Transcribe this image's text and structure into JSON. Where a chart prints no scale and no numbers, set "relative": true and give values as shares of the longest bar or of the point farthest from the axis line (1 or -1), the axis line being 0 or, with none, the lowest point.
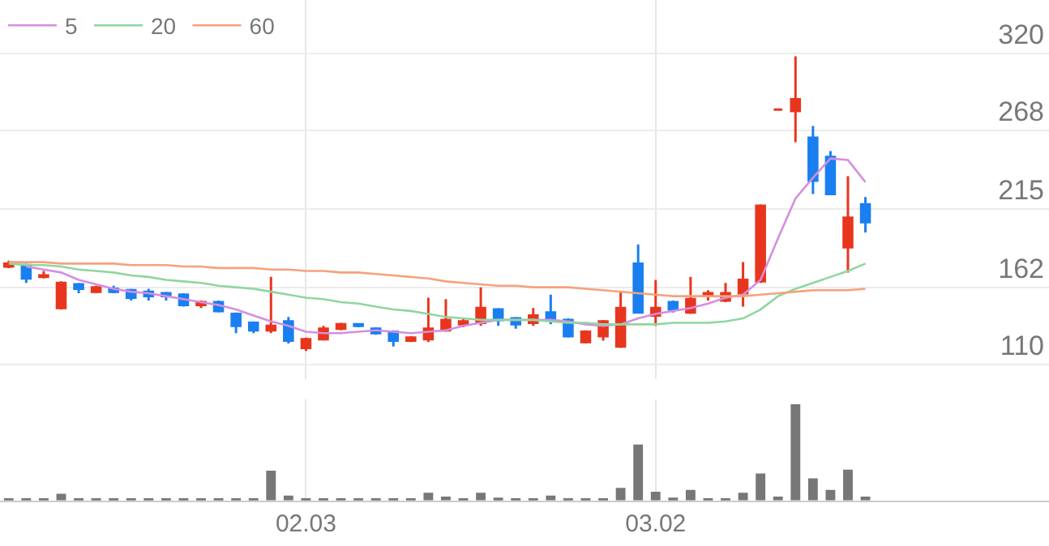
{
  "chart_data": [
    {
      "type": "candlestick",
      "categories": [
        null,
        null,
        null,
        null,
        null,
        null,
        null,
        null,
        null,
        null,
        null,
        null,
        null,
        null,
        null,
        null,
        null,
        "02.03",
        null,
        null,
        null,
        null,
        null,
        null,
        null,
        null,
        null,
        null,
        null,
        null,
        null,
        null,
        null,
        null,
        null,
        null,
        null,
        "03.02",
        null,
        null,
        null,
        null,
        null,
        null,
        null,
        null,
        null,
        null,
        null,
        null
      ],
      "ohlc": [
        [
          176,
          180,
          175,
          178
        ],
        [
          177,
          178,
          165,
          168
        ],
        [
          169,
          173,
          168,
          170
        ],
        [
          148,
          166,
          147,
          165
        ],
        [
          164,
          165,
          158,
          161
        ],
        [
          159,
          163,
          158,
          162
        ],
        [
          161,
          163,
          158,
          159
        ],
        [
          160,
          161,
          153,
          155
        ],
        [
          159,
          161,
          153,
          156
        ],
        [
          158,
          159,
          153,
          156
        ],
        [
          157,
          158,
          149,
          150
        ],
        [
          150,
          153,
          148,
          152
        ],
        [
          152,
          153,
          145,
          146
        ],
        [
          144,
          145,
          131,
          136
        ],
        [
          138,
          139,
          131,
          133
        ],
        [
          133,
          169,
          131,
          136
        ],
        [
          139,
          142,
          124,
          126
        ],
        [
          121,
          128,
          119,
          127
        ],
        [
          127,
          136,
          126,
          134
        ],
        [
          134,
          138,
          133,
          137
        ],
        [
          137,
          137,
          135,
          136
        ],
        [
          134,
          135,
          130,
          131
        ],
        [
          132,
          133,
          122,
          126
        ],
        [
          126,
          129,
          125,
          128
        ],
        [
          127,
          155,
          125,
          134
        ],
        [
          133,
          154,
          132,
          140
        ],
        [
          137,
          141,
          135,
          139
        ],
        [
          138,
          162,
          136,
          148
        ],
        [
          147,
          148,
          136,
          140
        ],
        [
          141,
          142,
          134,
          137
        ],
        [
          138,
          148,
          136,
          143
        ],
        [
          145,
          157,
          137,
          141
        ],
        [
          140,
          141,
          128,
          129
        ],
        [
          125,
          133,
          124,
          132
        ],
        [
          129,
          140,
          126,
          139
        ],
        [
          122,
          159,
          121,
          148
        ],
        [
          178,
          191,
          145,
          145
        ],
        [
          143,
          167,
          136,
          148
        ],
        [
          152,
          153,
          145,
          147
        ],
        [
          145,
          169,
          144,
          154
        ],
        [
          156,
          160,
          153,
          158
        ],
        [
          153,
          165,
          152,
          158
        ],
        [
          158,
          179,
          149,
          167
        ],
        [
          166,
          218,
          165,
          217
        ],
        [
          282,
          282,
          282,
          282
        ],
        [
          281,
          318,
          260,
          289
        ],
        [
          263,
          271,
          225,
          234
        ],
        [
          250,
          254,
          225,
          225
        ],
        [
          189,
          237,
          172,
          209
        ],
        [
          218,
          223,
          199,
          206
        ]
      ],
      "colors": [
        "#e8361e",
        "#1a7ff0",
        "#e8361e",
        "#e8361e",
        "#1a7ff0",
        "#e8361e",
        "#1a7ff0",
        "#1a7ff0",
        "#1a7ff0",
        "#1a7ff0",
        "#1a7ff0",
        "#e8361e",
        "#1a7ff0",
        "#1a7ff0",
        "#1a7ff0",
        "#e8361e",
        "#1a7ff0",
        "#e8361e",
        "#e8361e",
        "#e8361e",
        "#1a7ff0",
        "#1a7ff0",
        "#1a7ff0",
        "#e8361e",
        "#e8361e",
        "#e8361e",
        "#e8361e",
        "#e8361e",
        "#1a7ff0",
        "#1a7ff0",
        "#e8361e",
        "#1a7ff0",
        "#1a7ff0",
        "#e8361e",
        "#e8361e",
        "#e8361e",
        "#1a7ff0",
        "#e8361e",
        "#1a7ff0",
        "#e8361e",
        "#e8361e",
        "#e8361e",
        "#e8361e",
        "#e8361e",
        "#e8361e",
        "#e8361e",
        "#1a7ff0",
        "#1a7ff0",
        "#e8361e",
        "#1a7ff0"
      ],
      "series": [
        {
          "name": "5",
          "type": "line",
          "color": "#d58ee0",
          "values": [
            null,
            176,
            174,
            172,
            167,
            164,
            161,
            159,
            158,
            156,
            154,
            152,
            150,
            147,
            143,
            139,
            136,
            132,
            131,
            131,
            132,
            133,
            132,
            131,
            132,
            133,
            136,
            138,
            140,
            140,
            140,
            140,
            139,
            137,
            136,
            137,
            141,
            144,
            146,
            148,
            151,
            155,
            157,
            167,
            195,
            222,
            236,
            249,
            248,
            233
          ]
        },
        {
          "name": "20",
          "type": "line",
          "color": "#8fd6a0",
          "values": [
            178,
            177,
            177,
            176,
            174,
            173,
            172,
            170,
            169,
            167,
            166,
            165,
            163,
            162,
            161,
            159,
            157,
            155,
            154,
            152,
            151,
            149,
            147,
            146,
            144,
            142,
            141,
            140,
            140,
            140,
            140,
            139,
            138,
            138,
            137,
            137,
            137,
            137,
            138,
            138,
            138,
            139,
            141,
            147,
            156,
            161,
            165,
            169,
            173,
            178
          ]
        },
        {
          "name": "60",
          "type": "line",
          "color": "#f5a27c",
          "values": [
            179,
            179,
            179,
            178,
            178,
            178,
            178,
            177,
            177,
            177,
            176,
            176,
            175,
            175,
            175,
            174,
            174,
            173,
            173,
            172,
            172,
            171,
            170,
            169,
            168,
            166,
            165,
            164,
            163,
            163,
            162,
            162,
            162,
            161,
            160,
            159,
            158,
            157,
            156,
            156,
            156,
            156,
            156,
            157,
            158,
            159,
            160,
            160,
            160,
            161
          ]
        }
      ],
      "ylim": [
        100,
        356
      ],
      "yticks": [
        110,
        162,
        215,
        268,
        320
      ],
      "grid": true,
      "legend": "top left",
      "tick_labels": "y"
    },
    {
      "type": "bar",
      "categories": [
        null,
        null,
        null,
        null,
        null,
        null,
        null,
        null,
        null,
        null,
        null,
        null,
        null,
        null,
        null,
        null,
        null,
        "02.03",
        null,
        null,
        null,
        null,
        null,
        null,
        null,
        null,
        null,
        null,
        null,
        null,
        null,
        null,
        null,
        null,
        null,
        null,
        null,
        "03.02",
        null,
        null,
        null,
        null,
        null,
        null,
        null,
        null,
        null,
        null,
        null,
        null
      ],
      "values": [
        0.01,
        0.01,
        0.01,
        0.07,
        0.01,
        0.02,
        0.01,
        0.01,
        0.01,
        0.01,
        0.02,
        0.01,
        0.01,
        0.02,
        0.01,
        0.31,
        0.05,
        0.02,
        0.01,
        0.01,
        0.01,
        0.01,
        0.01,
        0.01,
        0.08,
        0.04,
        0.01,
        0.08,
        0.03,
        0.01,
        0.01,
        0.05,
        0.02,
        0.01,
        0.01,
        0.13,
        0.58,
        0.09,
        0.03,
        0.11,
        0.02,
        0.02,
        0.08,
        0.28,
        0.04,
        1,
        0.23,
        0.11,
        0.32,
        0.04
      ],
      "color": "#777777",
      "relative": true,
      "grid": "x",
      "tick_labels": "x"
    }
  ]
}
